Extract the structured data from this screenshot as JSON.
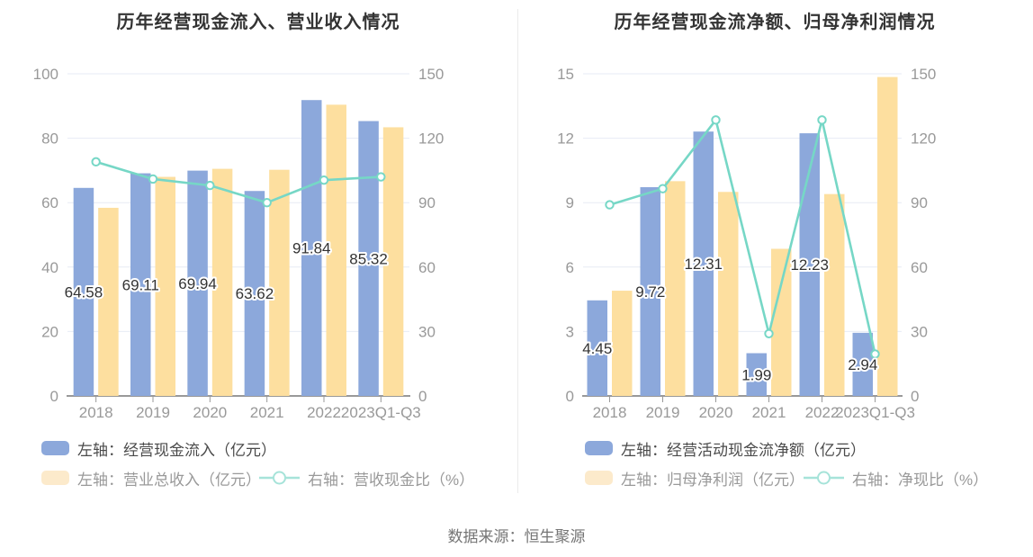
{
  "page": {
    "source_note": "数据来源：恒生聚源"
  },
  "colors": {
    "bar_blue": "#8CA8DB",
    "bar_yellow": "#FDDF9F",
    "line_teal": "#76D7C6",
    "legend_swatch_yellow": "#FCEACB",
    "legend_line_teal": "#A6E3D9",
    "grid": "#E7EBF4",
    "axis_line": "#999999",
    "axis_label": "#999999",
    "bar_label_text": "#333333",
    "title_text": "#333333",
    "divider": "#EBEBEB",
    "footer_text": "#757575",
    "marker_fill": "#FFFFFF"
  },
  "chart_data": [
    {
      "type": "bar",
      "title": "历年经营现金流入、营业收入情况",
      "categories": [
        "2018",
        "2019",
        "2020",
        "2021",
        "2022",
        "2023Q1-Q3"
      ],
      "left_axis": {
        "min": 0,
        "max": 100,
        "ticks": [
          100,
          80,
          60,
          40,
          20,
          0
        ]
      },
      "right_axis": {
        "min": 0,
        "max": 150,
        "ticks": [
          150,
          120,
          90,
          60,
          30,
          0
        ]
      },
      "grid": true,
      "legend_position": "bottom",
      "series": [
        {
          "name": "左轴：经营现金流入（亿元）",
          "type": "bar",
          "axis": "left",
          "color": "#8CA8DB",
          "show_value_labels": true,
          "values": [
            64.58,
            69.11,
            69.94,
            63.62,
            91.84,
            85.32
          ]
        },
        {
          "name": "左轴：营业总收入（亿元）",
          "type": "bar",
          "axis": "left",
          "color": "#FDDF9F",
          "show_value_labels": false,
          "values": [
            58.4,
            68,
            70.5,
            70.2,
            90.4,
            83.4
          ]
        },
        {
          "name": "右轴：营收现金比（%）",
          "type": "line",
          "axis": "right",
          "color": "#76D7C6",
          "show_value_labels": false,
          "values": [
            109,
            101,
            98,
            90,
            100.5,
            102
          ]
        }
      ]
    },
    {
      "type": "bar",
      "title": "历年经营现金流净额、归母净利润情况",
      "categories": [
        "2018",
        "2019",
        "2020",
        "2021",
        "2022",
        "2023Q1-Q3"
      ],
      "left_axis": {
        "min": 0,
        "max": 15,
        "ticks": [
          15,
          12,
          9,
          6,
          3,
          0
        ]
      },
      "right_axis": {
        "min": 0,
        "max": 150,
        "ticks": [
          150,
          120,
          90,
          60,
          30,
          0
        ]
      },
      "grid": true,
      "legend_position": "bottom",
      "series": [
        {
          "name": "左轴：经营活动现金流净额（亿元）",
          "type": "bar",
          "axis": "left",
          "color": "#8CA8DB",
          "show_value_labels": true,
          "values": [
            4.45,
            9.72,
            12.31,
            1.99,
            12.23,
            2.94
          ]
        },
        {
          "name": "左轴：归母净利润（亿元）",
          "type": "bar",
          "axis": "left",
          "color": "#FDDF9F",
          "show_value_labels": false,
          "values": [
            4.9,
            10,
            9.5,
            6.85,
            9.4,
            14.85
          ]
        },
        {
          "name": "右轴：净现比（%）",
          "type": "line",
          "axis": "right",
          "color": "#76D7C6",
          "show_value_labels": false,
          "values": [
            89,
            96.5,
            128.5,
            29,
            128.5,
            19.5
          ]
        }
      ]
    }
  ]
}
